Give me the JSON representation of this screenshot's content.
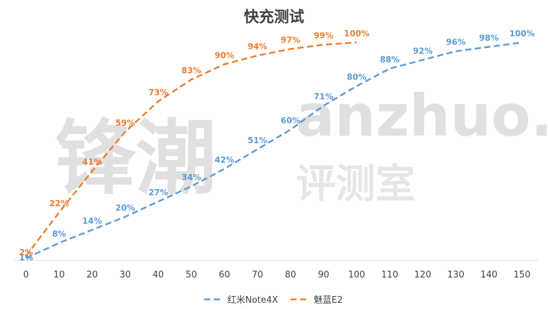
{
  "watermark": {
    "brand_cn": "锋潮",
    "site": "anzhuo.cn",
    "sub_cn": "评测室"
  },
  "chart_data": {
    "type": "line",
    "title": "快充测试",
    "xlabel": "",
    "ylabel": "",
    "x_ticks": [
      0,
      10,
      20,
      30,
      40,
      50,
      60,
      70,
      80,
      90,
      100,
      110,
      120,
      130,
      140,
      150
    ],
    "xlim": [
      0,
      150
    ],
    "ylim": [
      0,
      100
    ],
    "grid": false,
    "legend_position": "bottom",
    "series": [
      {
        "name": "红米Note4X",
        "color": "#5b9bd5",
        "x": [
          0,
          10,
          20,
          30,
          40,
          50,
          60,
          70,
          80,
          90,
          100,
          110,
          120,
          130,
          140,
          150
        ],
        "y": [
          1,
          8,
          14,
          20,
          27,
          34,
          42,
          51,
          60,
          71,
          80,
          88,
          92,
          96,
          98,
          100
        ],
        "labels": [
          "1%",
          "8%",
          "14%",
          "20%",
          "27%",
          "34%",
          "42%",
          "51%",
          "60%",
          "71%",
          "80%",
          "88%",
          "92%",
          "96%",
          "98%",
          "100%"
        ]
      },
      {
        "name": "魅蓝E2",
        "color": "#ed7d31",
        "x": [
          0,
          10,
          20,
          30,
          40,
          50,
          60,
          70,
          80,
          90,
          100
        ],
        "y": [
          2,
          22,
          41,
          59,
          73,
          83,
          90,
          94,
          97,
          99,
          100
        ],
        "labels": [
          "2%",
          "22%",
          "41%",
          "59%",
          "73%",
          "83%",
          "90%",
          "94%",
          "97%",
          "99%",
          "100%"
        ]
      }
    ]
  }
}
